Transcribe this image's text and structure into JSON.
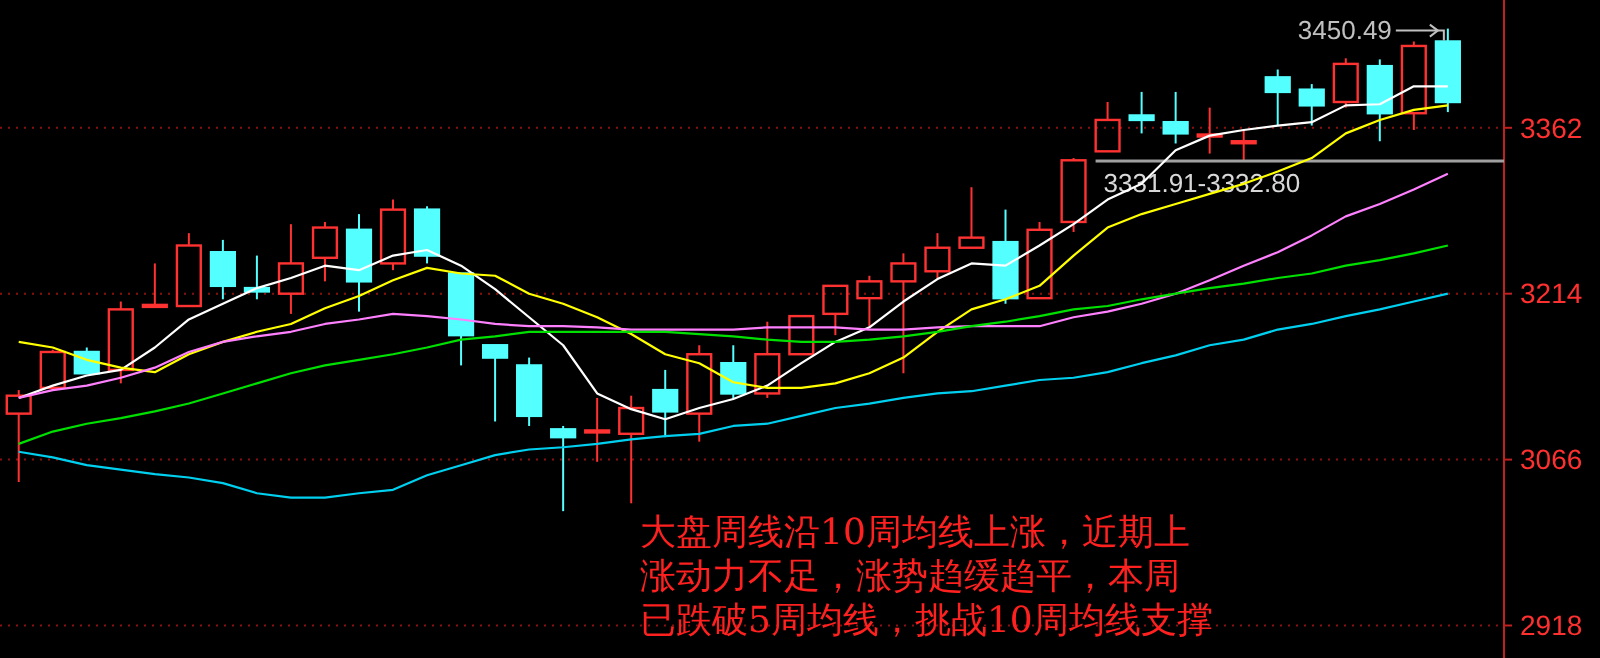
{
  "chart_data": {
    "type": "candlestick",
    "categories": [
      null,
      null,
      null,
      null,
      null,
      null,
      null,
      null,
      null,
      null,
      null,
      null,
      null,
      null,
      null,
      null,
      null,
      null,
      null,
      null,
      null,
      null,
      null,
      null,
      null,
      null,
      null,
      null,
      null,
      null,
      null,
      null,
      null,
      null,
      null,
      null,
      null,
      null,
      null,
      null,
      null,
      null,
      null
    ],
    "ohlc": [
      [
        3107,
        3128,
        3046,
        3123
      ],
      [
        3130,
        3164,
        3128,
        3162
      ],
      [
        3162,
        3166,
        3143,
        3143
      ],
      [
        3146,
        3207,
        3134,
        3200
      ],
      [
        3203,
        3241,
        3203,
        3204
      ],
      [
        3203,
        3268,
        3203,
        3257
      ],
      [
        3251,
        3262,
        3209,
        3221
      ],
      [
        3219,
        3248,
        3209,
        3216
      ],
      [
        3214,
        3276,
        3196,
        3241
      ],
      [
        3246,
        3278,
        3225,
        3273
      ],
      [
        3271,
        3285,
        3198,
        3225
      ],
      [
        3241,
        3298,
        3235,
        3289
      ],
      [
        3289,
        3292,
        3241,
        3248
      ],
      [
        3232,
        3232,
        3150,
        3177
      ],
      [
        3168,
        3168,
        3100,
        3157
      ],
      [
        3150,
        3157,
        3096,
        3105
      ],
      [
        3093,
        3096,
        3020,
        3086
      ],
      [
        3091,
        3121,
        3064,
        3092
      ],
      [
        3089,
        3123,
        3027,
        3112
      ],
      [
        3128,
        3146,
        3086,
        3109
      ],
      [
        3107,
        3168,
        3082,
        3160
      ],
      [
        3152,
        3168,
        3120,
        3125
      ],
      [
        3125,
        3189,
        3121,
        3160
      ],
      [
        3160,
        3194,
        3160,
        3194
      ],
      [
        3196,
        3221,
        3177,
        3221
      ],
      [
        3210,
        3230,
        3185,
        3225
      ],
      [
        3225,
        3250,
        3143,
        3241
      ],
      [
        3234,
        3268,
        3227,
        3255
      ],
      [
        3255,
        3309,
        3255,
        3264
      ],
      [
        3260,
        3289,
        3205,
        3210
      ],
      [
        3210,
        3278,
        3210,
        3271
      ],
      [
        3278,
        3335,
        3269,
        3333
      ],
      [
        3341,
        3385,
        3341,
        3369
      ],
      [
        3373,
        3394,
        3357,
        3369
      ],
      [
        3367,
        3394,
        3348,
        3357
      ],
      [
        3355,
        3380,
        3339,
        3356
      ],
      [
        3349,
        3360,
        3333,
        3350
      ],
      [
        3407,
        3414,
        3364,
        3394
      ],
      [
        3396,
        3401,
        3364,
        3382
      ],
      [
        3385,
        3424,
        3380,
        3419
      ],
      [
        3417,
        3423,
        3350,
        3375
      ],
      [
        3375,
        3439,
        3360,
        3435
      ],
      [
        3439,
        3450.49,
        3376,
        3385
      ]
    ],
    "series": [
      {
        "type": "line",
        "color": "#ffffff",
        "values": [
          3121,
          3132,
          3141,
          3146,
          3166,
          3191,
          3205,
          3219,
          3228,
          3239,
          3235,
          3248,
          3253,
          3239,
          3218,
          3193,
          3168,
          3125,
          3111,
          3102,
          3112,
          3120,
          3132,
          3152,
          3171,
          3184,
          3207,
          3227,
          3241,
          3239,
          3257,
          3276,
          3298,
          3312,
          3342,
          3355,
          3360,
          3364,
          3367,
          3382,
          3383,
          3399,
          3399
        ]
      },
      {
        "type": "line",
        "color": "#ffff00",
        "values": [
          3171,
          3166,
          3155,
          3148,
          3144,
          3160,
          3171,
          3180,
          3187,
          3201,
          3212,
          3226,
          3237,
          3232,
          3230,
          3214,
          3205,
          3193,
          3178,
          3160,
          3152,
          3135,
          3130,
          3130,
          3134,
          3143,
          3157,
          3180,
          3200,
          3209,
          3221,
          3248,
          3273,
          3285,
          3294,
          3303,
          3312,
          3323,
          3335,
          3357,
          3369,
          3378,
          3382
        ]
      },
      {
        "type": "line",
        "color": "#ff80ff",
        "values": [
          3121,
          3128,
          3132,
          3139,
          3148,
          3162,
          3171,
          3176,
          3180,
          3187,
          3191,
          3196,
          3194,
          3191,
          3187,
          3185,
          3185,
          3184,
          3182,
          3182,
          3182,
          3182,
          3184,
          3184,
          3184,
          3182,
          3182,
          3184,
          3185,
          3185,
          3185,
          3193,
          3198,
          3205,
          3214,
          3226,
          3239,
          3251,
          3266,
          3283,
          3294,
          3307,
          3321
        ]
      },
      {
        "type": "line",
        "color": "#00e000",
        "values": [
          3080,
          3091,
          3098,
          3103,
          3109,
          3116,
          3125,
          3134,
          3143,
          3150,
          3155,
          3160,
          3166,
          3173,
          3176,
          3180,
          3180,
          3180,
          3180,
          3180,
          3178,
          3176,
          3173,
          3171,
          3171,
          3173,
          3176,
          3180,
          3185,
          3189,
          3194,
          3200,
          3203,
          3209,
          3214,
          3219,
          3223,
          3228,
          3232,
          3239,
          3244,
          3250,
          3257
        ]
      },
      {
        "type": "line",
        "color": "#00d0f0",
        "values": [
          3073,
          3068,
          3061,
          3057,
          3053,
          3050,
          3045,
          3036,
          3032,
          3032,
          3036,
          3039,
          3052,
          3061,
          3070,
          3075,
          3077,
          3080,
          3084,
          3087,
          3089,
          3096,
          3098,
          3105,
          3112,
          3116,
          3121,
          3125,
          3127,
          3132,
          3137,
          3139,
          3144,
          3152,
          3159,
          3168,
          3173,
          3182,
          3187,
          3194,
          3200,
          3207,
          3214
        ]
      }
    ],
    "ylim": [
      2889,
      3476
    ],
    "yticks": [
      2918,
      3066,
      3214,
      3362
    ],
    "grid": "y",
    "tick_labels": "y",
    "bands": [
      {
        "axis": "y",
        "from": 3331.91,
        "to": 3332.8,
        "label": "3331.91-3332.80",
        "color": "#a0a0a0"
      }
    ],
    "annotations": [
      "3450.49",
      "大盘周线沿10周均线上涨，近期上涨动力不足，涨势趋缓趋平，本周已跌破5周均线，挑战10周均线支撑"
    ]
  }
}
